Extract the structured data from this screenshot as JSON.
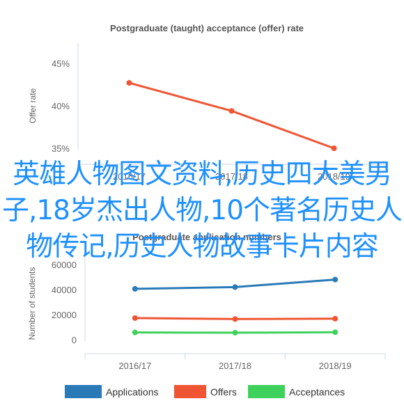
{
  "overlay_text": "英雄人物图文资料,历史四大美男子,18岁杰出人物,10个著名历史人物传记,历史人物故事卡片内容",
  "chart_data": [
    {
      "type": "line",
      "title": "Postgraduate (taught) acceptance (offer) rate",
      "xlabel": "",
      "ylabel": "Offer rate",
      "categories": [
        "2016/17",
        "2017/18",
        "2018/19"
      ],
      "series": [
        {
          "values": [
            42.7,
            39.4,
            35.0
          ],
          "color": "#ef5533"
        }
      ],
      "ylim": [
        35,
        45
      ],
      "y_ticks": [
        "35%",
        "40%",
        "45%"
      ],
      "grid": false,
      "legend": null
    },
    {
      "type": "line",
      "title": "Postgraduate application numbers",
      "xlabel": "",
      "ylabel": "Number of students",
      "categories": [
        "2016/17",
        "2017/18",
        "2018/19"
      ],
      "series": [
        {
          "name": "Applications",
          "values": [
            40600,
            42000,
            48000
          ],
          "color": "#2a7ab8"
        },
        {
          "name": "Offers",
          "values": [
            17300,
            16500,
            16800
          ],
          "color": "#ef5533"
        },
        {
          "name": "Acceptances",
          "values": [
            5800,
            5600,
            6000
          ],
          "color": "#3ed15b"
        }
      ],
      "ylim": [
        0,
        60000
      ],
      "y_ticks": [
        "0",
        "20000",
        "40000",
        "60000"
      ],
      "grid": false,
      "legend": "bottom"
    }
  ]
}
